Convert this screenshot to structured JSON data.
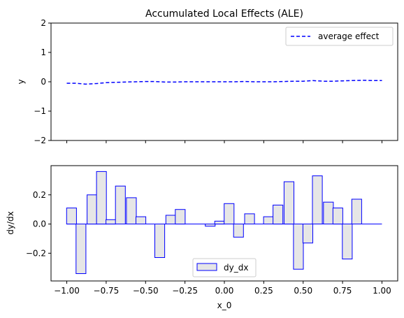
{
  "chart_data": [
    {
      "type": "line",
      "title": "Accumulated Local Effects (ALE)",
      "xlabel": "",
      "ylabel": "y",
      "xlim": [
        -1.1,
        1.1
      ],
      "ylim": [
        -2,
        2
      ],
      "yticks": [
        "2",
        "1",
        "0",
        "−1",
        "−2"
      ],
      "ytick_values": [
        2,
        1,
        0,
        -1,
        -2
      ],
      "xtick_values": [
        -1.0,
        -0.75,
        -0.5,
        -0.25,
        0.0,
        0.25,
        0.5,
        0.75,
        1.0
      ],
      "show_xtick_labels": false,
      "legend_position": "top-right",
      "series": [
        {
          "name": "average effect",
          "style": "dashed",
          "color": "#0000ff",
          "x": [
            -1.0,
            -0.94,
            -0.88,
            -0.81,
            -0.75,
            -0.69,
            -0.63,
            -0.56,
            -0.5,
            -0.44,
            -0.38,
            -0.31,
            -0.25,
            -0.19,
            -0.13,
            -0.06,
            0.0,
            0.06,
            0.13,
            0.19,
            0.25,
            0.31,
            0.38,
            0.44,
            0.5,
            0.56,
            0.63,
            0.69,
            0.75,
            0.81,
            0.88,
            0.94,
            1.0
          ],
          "y": [
            -0.05,
            -0.05,
            -0.08,
            -0.06,
            -0.03,
            -0.02,
            -0.01,
            0.0,
            0.01,
            0.01,
            -0.01,
            -0.01,
            0.0,
            0.0,
            0.0,
            0.0,
            0.0,
            0.0,
            0.01,
            0.0,
            0.0,
            0.0,
            0.01,
            0.02,
            0.02,
            0.04,
            0.02,
            0.02,
            0.03,
            0.04,
            0.05,
            0.04,
            0.04
          ]
        }
      ]
    },
    {
      "type": "bar",
      "title": "",
      "xlabel": "x_0",
      "ylabel": "dy/dx",
      "xlim": [
        -1.1,
        1.1
      ],
      "ylim": [
        -0.39,
        0.4
      ],
      "ytick_values": [
        0.2,
        0.0,
        -0.2
      ],
      "yticks": [
        "0.2",
        "0.0",
        "−0.2"
      ],
      "xtick_values": [
        -1.0,
        -0.75,
        -0.5,
        -0.25,
        0.0,
        0.25,
        0.5,
        0.75,
        1.0
      ],
      "xticks": [
        "−1.00",
        "−0.75",
        "−0.50",
        "−0.25",
        "0.00",
        "0.25",
        "0.50",
        "0.75",
        "1.00"
      ],
      "legend_position": "bottom-center",
      "series": [
        {
          "name": "dy_dx",
          "fill": "#e6e6e6",
          "edge": "#0000ff",
          "bin_width": 0.0625,
          "x": [
            -0.97,
            -0.91,
            -0.84,
            -0.78,
            -0.72,
            -0.66,
            -0.59,
            -0.53,
            -0.47,
            -0.41,
            -0.34,
            -0.28,
            -0.22,
            -0.16,
            -0.09,
            -0.03,
            0.03,
            0.09,
            0.16,
            0.22,
            0.28,
            0.34,
            0.41,
            0.47,
            0.53,
            0.59,
            0.66,
            0.72,
            0.78,
            0.84,
            0.91,
            0.97
          ],
          "values": [
            0.11,
            -0.34,
            0.2,
            0.36,
            0.03,
            0.26,
            0.18,
            0.05,
            0.0,
            -0.23,
            0.06,
            0.1,
            0.0,
            0.0,
            -0.015,
            0.02,
            0.14,
            -0.09,
            0.07,
            0.0,
            0.05,
            0.13,
            0.29,
            -0.31,
            -0.13,
            0.33,
            0.15,
            0.11,
            -0.24,
            0.17,
            0.0,
            0.0
          ]
        }
      ],
      "baseline": 0
    }
  ]
}
